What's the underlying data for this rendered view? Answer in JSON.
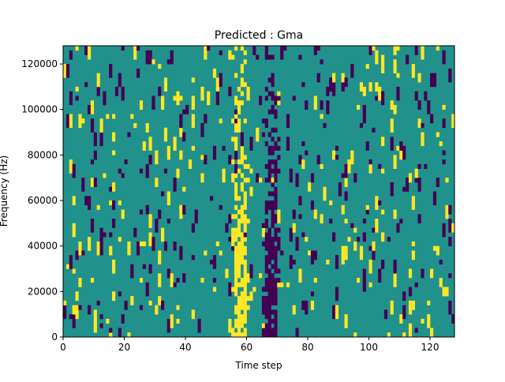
{
  "chart_data": {
    "type": "heatmap",
    "title": "Predicted : Gma",
    "xlabel": "Time step",
    "ylabel": "Frequency (Hz)",
    "xlim": [
      0,
      128
    ],
    "ylim": [
      0,
      128000
    ],
    "x_ticks": [
      0,
      20,
      40,
      60,
      80,
      100,
      120
    ],
    "y_ticks": [
      0,
      20000,
      40000,
      60000,
      80000,
      100000,
      120000
    ],
    "n_time_steps": 128,
    "n_freq_bins": 64,
    "value_levels": [
      0,
      1,
      2
    ],
    "colors": {
      "low": "#440154",
      "mid": "#21918c",
      "high": "#fde725"
    },
    "background_level": 1,
    "random_seed": 7,
    "noise_density": 0.07,
    "structured_bands": [
      {
        "level": 2,
        "x_range": [
          56,
          59
        ],
        "description_note": ""
      },
      {
        "level": 0,
        "x_range": [
          66,
          69
        ]
      }
    ]
  }
}
